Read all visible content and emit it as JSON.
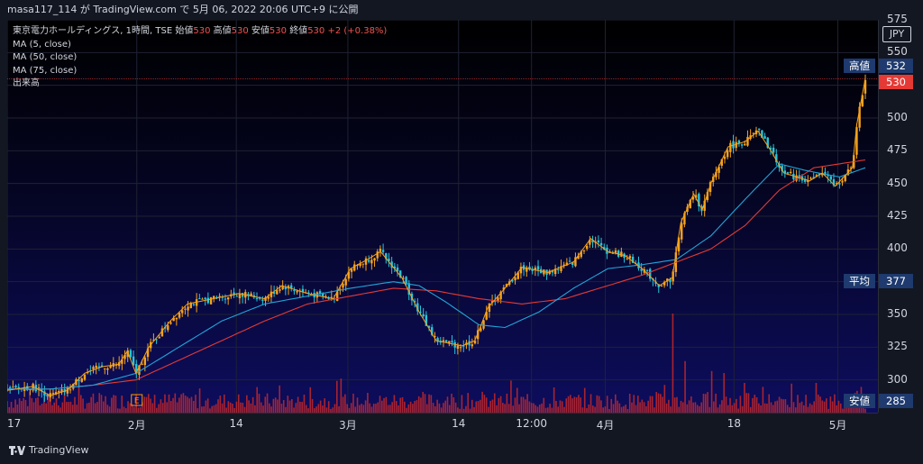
{
  "header": {
    "caption": "masa117_114 が TradingView.com で 5月 06, 2022 20:06 UTC+9 に公開"
  },
  "legend": {
    "symbol": "東京電力ホールディングス, 1時間, TSE",
    "open_label": "始値",
    "open": "530",
    "high_label": "高値",
    "high": "530",
    "low_label": "安値",
    "low": "530",
    "close_label": "終値",
    "close": "530",
    "change": "+2 (+0.38%)",
    "indicators": [
      "MA (5, close)",
      "MA (50, close)",
      "MA (75, close)",
      "出来高"
    ]
  },
  "currency": "JPY",
  "markers": {
    "high": {
      "label": "高値",
      "value": "532"
    },
    "avg": {
      "label": "平均",
      "value": "377"
    },
    "low": {
      "label": "安値",
      "value": "285"
    },
    "last": {
      "value": "530"
    }
  },
  "earnings_marker": "E",
  "footer": {
    "brand": "TradingView"
  },
  "colors": {
    "up": "#f7a21b",
    "down": "#26c6da",
    "ma5": "#f7a21b",
    "ma50": "#22a4d6",
    "ma75": "#e53935",
    "volume": "#c62828",
    "last": "#e53935"
  },
  "chart_data": {
    "type": "candlestick",
    "y_axis": {
      "min": 275,
      "max": 575,
      "ticks": [
        300,
        325,
        350,
        375,
        400,
        425,
        450,
        475,
        500,
        525,
        550,
        575
      ]
    },
    "x_labels": [
      {
        "label": "17",
        "at": 0
      },
      {
        "label": "2月",
        "at": 0.151
      },
      {
        "label": "14",
        "at": 0.267
      },
      {
        "label": "3月",
        "at": 0.397
      },
      {
        "label": "14",
        "at": 0.526
      },
      {
        "label": "12:00",
        "at": 0.611
      },
      {
        "label": "4月",
        "at": 0.697
      },
      {
        "label": "18",
        "at": 0.847
      },
      {
        "label": "5月",
        "at": 0.968
      }
    ],
    "price_path": [
      [
        0,
        292
      ],
      [
        0.03,
        295
      ],
      [
        0.05,
        288
      ],
      [
        0.07,
        292
      ],
      [
        0.09,
        305
      ],
      [
        0.11,
        310
      ],
      [
        0.13,
        312
      ],
      [
        0.14,
        322
      ],
      [
        0.15,
        305
      ],
      [
        0.165,
        325
      ],
      [
        0.19,
        345
      ],
      [
        0.21,
        358
      ],
      [
        0.24,
        362
      ],
      [
        0.27,
        366
      ],
      [
        0.3,
        362
      ],
      [
        0.32,
        372
      ],
      [
        0.35,
        366
      ],
      [
        0.38,
        362
      ],
      [
        0.4,
        385
      ],
      [
        0.42,
        392
      ],
      [
        0.435,
        398
      ],
      [
        0.46,
        378
      ],
      [
        0.48,
        352
      ],
      [
        0.5,
        330
      ],
      [
        0.53,
        326
      ],
      [
        0.545,
        330
      ],
      [
        0.56,
        355
      ],
      [
        0.58,
        370
      ],
      [
        0.6,
        386
      ],
      [
        0.63,
        382
      ],
      [
        0.66,
        390
      ],
      [
        0.68,
        408
      ],
      [
        0.7,
        398
      ],
      [
        0.72,
        395
      ],
      [
        0.74,
        385
      ],
      [
        0.76,
        372
      ],
      [
        0.775,
        378
      ],
      [
        0.785,
        420
      ],
      [
        0.8,
        442
      ],
      [
        0.81,
        430
      ],
      [
        0.82,
        450
      ],
      [
        0.84,
        478
      ],
      [
        0.86,
        482
      ],
      [
        0.875,
        490
      ],
      [
        0.89,
        475
      ],
      [
        0.905,
        458
      ],
      [
        0.92,
        455
      ],
      [
        0.935,
        452
      ],
      [
        0.95,
        458
      ],
      [
        0.965,
        448
      ],
      [
        0.975,
        455
      ],
      [
        0.985,
        462
      ],
      [
        0.99,
        495
      ],
      [
        1.0,
        530
      ]
    ],
    "ma50_path": [
      [
        0,
        293
      ],
      [
        0.05,
        293
      ],
      [
        0.1,
        296
      ],
      [
        0.15,
        305
      ],
      [
        0.2,
        325
      ],
      [
        0.25,
        345
      ],
      [
        0.3,
        358
      ],
      [
        0.35,
        364
      ],
      [
        0.4,
        370
      ],
      [
        0.45,
        375
      ],
      [
        0.48,
        372
      ],
      [
        0.51,
        360
      ],
      [
        0.55,
        342
      ],
      [
        0.58,
        340
      ],
      [
        0.62,
        352
      ],
      [
        0.66,
        370
      ],
      [
        0.7,
        385
      ],
      [
        0.74,
        388
      ],
      [
        0.78,
        392
      ],
      [
        0.82,
        410
      ],
      [
        0.86,
        438
      ],
      [
        0.9,
        465
      ],
      [
        0.93,
        460
      ],
      [
        0.97,
        455
      ],
      [
        1.0,
        462
      ]
    ],
    "ma75_path": [
      [
        0,
        293
      ],
      [
        0.05,
        293
      ],
      [
        0.1,
        296
      ],
      [
        0.15,
        300
      ],
      [
        0.2,
        315
      ],
      [
        0.25,
        330
      ],
      [
        0.3,
        345
      ],
      [
        0.35,
        358
      ],
      [
        0.4,
        364
      ],
      [
        0.45,
        370
      ],
      [
        0.5,
        368
      ],
      [
        0.55,
        362
      ],
      [
        0.6,
        358
      ],
      [
        0.65,
        362
      ],
      [
        0.7,
        372
      ],
      [
        0.74,
        380
      ],
      [
        0.78,
        390
      ],
      [
        0.82,
        400
      ],
      [
        0.86,
        418
      ],
      [
        0.9,
        445
      ],
      [
        0.94,
        462
      ],
      [
        0.97,
        465
      ],
      [
        1.0,
        468
      ]
    ],
    "volume_spikes": [
      [
        0.775,
        1.0
      ],
      [
        0.79,
        0.52
      ],
      [
        0.82,
        0.42
      ],
      [
        0.835,
        0.4
      ],
      [
        0.765,
        0.28
      ],
      [
        0.86,
        0.3
      ],
      [
        0.88,
        0.26
      ],
      [
        0.595,
        0.25
      ],
      [
        0.42,
        0.2
      ],
      [
        0.3,
        0.16
      ],
      [
        0.15,
        0.18
      ],
      [
        0.99,
        0.22
      ],
      [
        0.995,
        0.26
      ]
    ]
  }
}
